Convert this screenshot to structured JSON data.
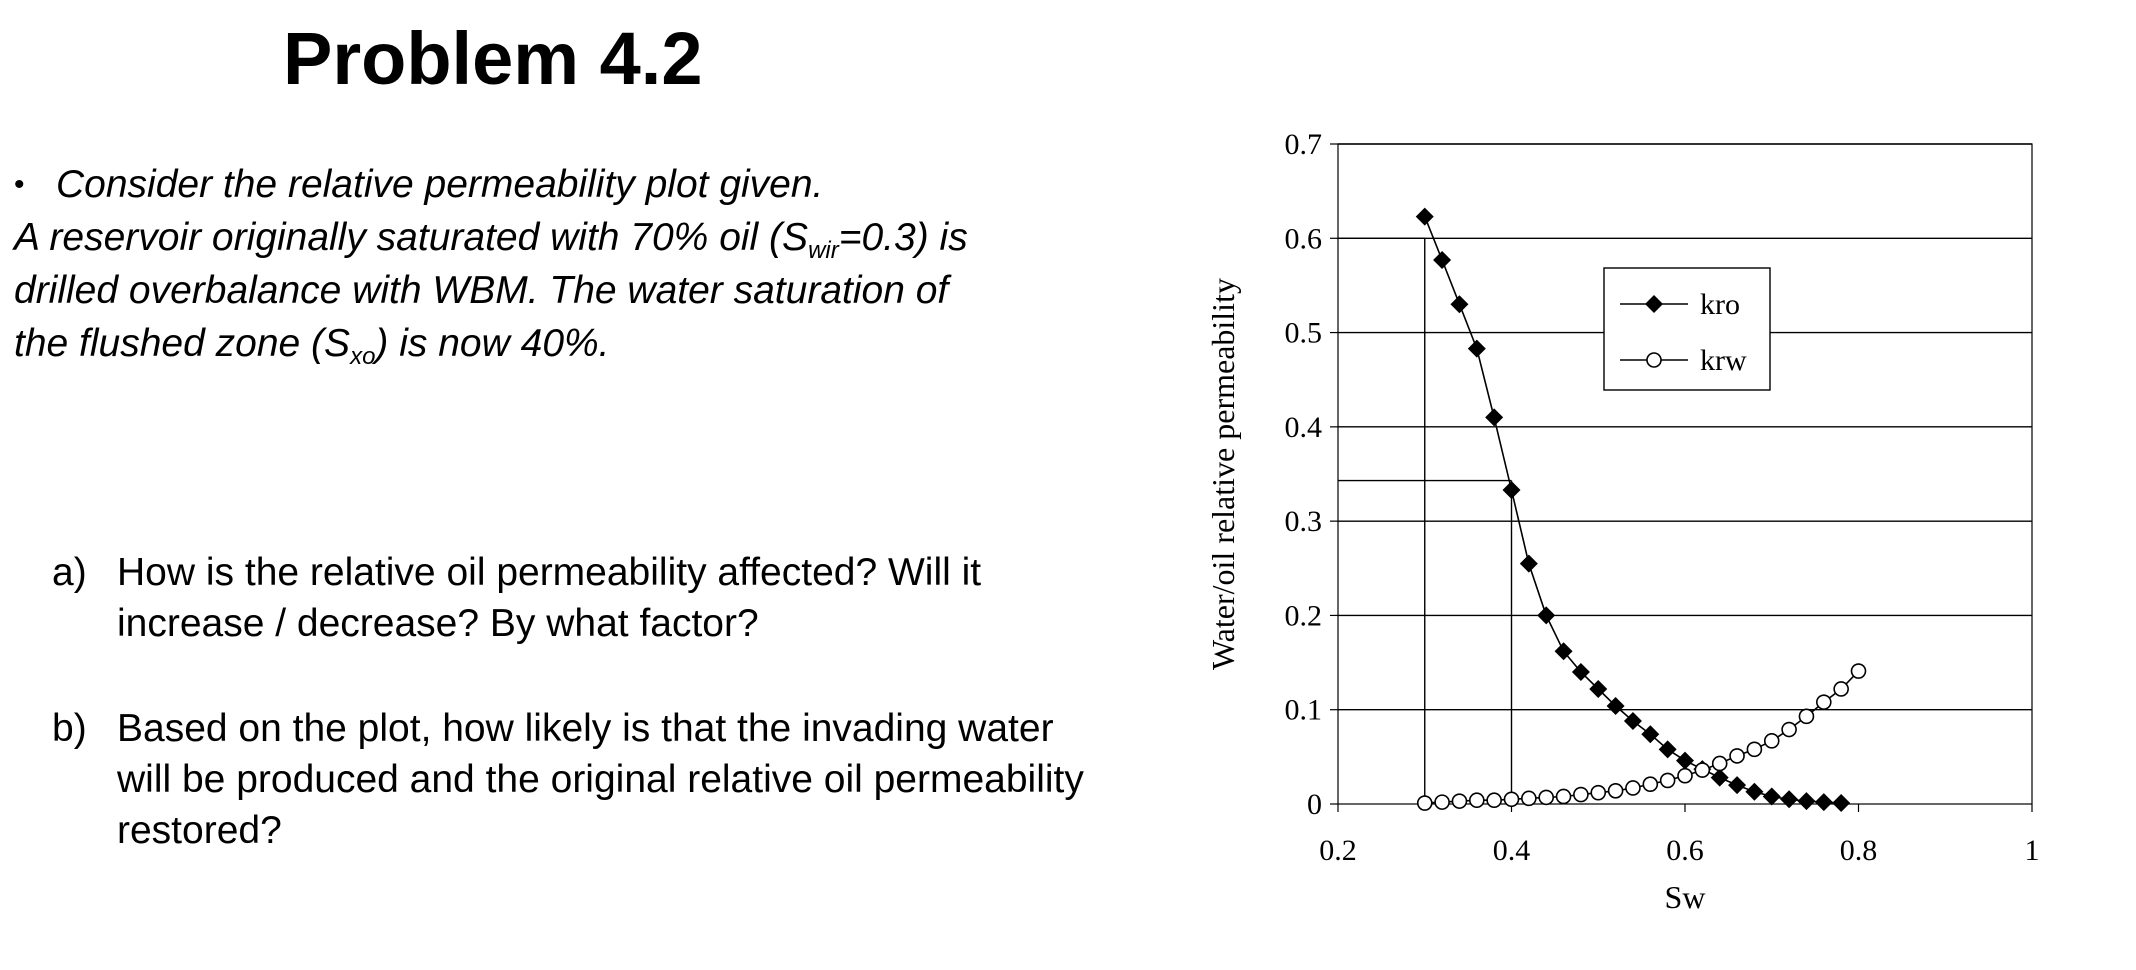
{
  "slide": {
    "title": "Problem 4.2",
    "intro": {
      "bullet": "•",
      "line1": "Consider the relative permeability plot given.",
      "line2_a": "A reservoir originally saturated with 70% oil (S",
      "line2_sub": "wir",
      "line2_b": "=0.3) is",
      "line3": "drilled overbalance with WBM. The water saturation of",
      "line4_a": "the flushed zone (S",
      "line4_sub": "xo",
      "line4_b": ") is now 40%."
    },
    "questions": [
      {
        "label": "a)",
        "text": "How is the relative oil permeability affected? Will it increase / decrease? By what factor?"
      },
      {
        "label": "b)",
        "text": "Based on the plot, how likely is that the invading water will be produced and the original relative oil permeability restored?"
      }
    ]
  },
  "chart_data": {
    "type": "line",
    "title": "",
    "xlabel": "Sw",
    "ylabel": "Water/oil relative permeability",
    "xlim": [
      0.2,
      1
    ],
    "ylim": [
      0,
      0.7
    ],
    "xticks": [
      "0.2",
      "0.4",
      "0.6",
      "0.8",
      "1"
    ],
    "yticks": [
      "0",
      "0.1",
      "0.2",
      "0.3",
      "0.4",
      "0.5",
      "0.6",
      "0.7"
    ],
    "grid": "horizontal",
    "legend_position": "upper-middle",
    "series": [
      {
        "name": "kro",
        "marker": "filled-diamond",
        "color": "#000000",
        "x": [
          0.3,
          0.32,
          0.34,
          0.36,
          0.38,
          0.4,
          0.42,
          0.44,
          0.46,
          0.48,
          0.5,
          0.52,
          0.54,
          0.56,
          0.58,
          0.6,
          0.62,
          0.64,
          0.66,
          0.68,
          0.7,
          0.72,
          0.74,
          0.76,
          0.78
        ],
        "y": [
          0.623,
          0.577,
          0.53,
          0.483,
          0.41,
          0.333,
          0.255,
          0.2,
          0.162,
          0.14,
          0.122,
          0.104,
          0.088,
          0.074,
          0.058,
          0.046,
          0.037,
          0.028,
          0.02,
          0.013,
          0.008,
          0.005,
          0.003,
          0.002,
          0.001
        ]
      },
      {
        "name": "krw",
        "marker": "open-circle",
        "color": "#000000",
        "x": [
          0.3,
          0.32,
          0.34,
          0.36,
          0.38,
          0.4,
          0.42,
          0.44,
          0.46,
          0.48,
          0.5,
          0.52,
          0.54,
          0.56,
          0.58,
          0.6,
          0.62,
          0.64,
          0.66,
          0.68,
          0.7,
          0.72,
          0.74,
          0.76,
          0.78,
          0.8
        ],
        "y": [
          0.001,
          0.002,
          0.003,
          0.004,
          0.004,
          0.005,
          0.006,
          0.007,
          0.008,
          0.01,
          0.012,
          0.014,
          0.017,
          0.021,
          0.025,
          0.03,
          0.036,
          0.043,
          0.051,
          0.058,
          0.067,
          0.079,
          0.093,
          0.108,
          0.122,
          0.141
        ]
      }
    ],
    "reference_lines": [
      {
        "from": [
          0.2,
          0.6
        ],
        "to": [
          0.3,
          0.6
        ]
      },
      {
        "from": [
          0.3,
          0.6
        ],
        "to": [
          0.3,
          0
        ]
      },
      {
        "from": [
          0.2,
          0.343
        ],
        "to": [
          0.4,
          0.343
        ]
      },
      {
        "from": [
          0.4,
          0.343
        ],
        "to": [
          0.4,
          0
        ]
      }
    ]
  }
}
